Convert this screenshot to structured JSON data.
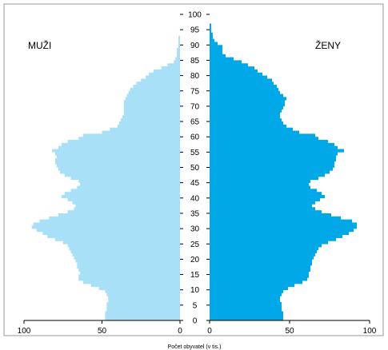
{
  "chart_data": {
    "type": "bar",
    "subtype": "population-pyramid",
    "orientation": "horizontal",
    "title": "",
    "xlabel": "Počet obyvatel (v tis.)",
    "ylabel": "",
    "left_label": "MUŽI",
    "right_label": "ŽENY",
    "xlim": [
      0,
      100
    ],
    "ylim": [
      0,
      100
    ],
    "x_ticks": [
      "100",
      "50",
      "0",
      "0",
      "50",
      "100"
    ],
    "y_ticks": [
      "0",
      "5",
      "10",
      "15",
      "20",
      "25",
      "30",
      "35",
      "40",
      "45",
      "50",
      "55",
      "60",
      "65",
      "70",
      "75",
      "80",
      "85",
      "90",
      "95",
      "100"
    ],
    "y_step": 1,
    "grid": false,
    "colors": {
      "male": "#a8e0f8",
      "female": "#00a8e8",
      "frame": "#999999"
    },
    "series": [
      {
        "name": "MUŽI",
        "values": [
          48,
          48,
          48,
          47,
          47,
          47,
          46,
          46,
          47,
          48,
          52,
          57,
          62,
          65,
          65,
          64,
          65,
          66,
          66,
          67,
          68,
          69,
          70,
          71,
          72,
          75,
          80,
          85,
          88,
          92,
          95,
          94,
          90,
          84,
          78,
          72,
          68,
          67,
          69,
          72,
          76,
          74,
          70,
          66,
          64,
          65,
          70,
          74,
          77,
          78,
          79,
          80,
          80,
          79,
          80,
          82,
          78,
          76,
          72,
          65,
          62,
          50,
          45,
          40,
          39,
          38,
          37,
          36,
          36,
          36,
          36,
          36,
          35,
          34,
          33,
          32,
          30,
          28,
          25,
          22,
          20,
          17,
          12,
          8,
          4,
          3,
          2,
          2,
          2,
          1,
          1,
          1,
          1,
          0,
          0,
          0,
          0,
          0,
          0,
          0,
          0
        ]
      },
      {
        "name": "ŽENY",
        "values": [
          46,
          46,
          46,
          45,
          45,
          45,
          44,
          44,
          45,
          46,
          49,
          53,
          58,
          61,
          62,
          62,
          63,
          63,
          64,
          64,
          65,
          66,
          67,
          68,
          70,
          74,
          79,
          83,
          87,
          90,
          92,
          92,
          89,
          82,
          76,
          70,
          66,
          64,
          66,
          69,
          72,
          70,
          67,
          63,
          62,
          63,
          68,
          72,
          75,
          77,
          78,
          78,
          79,
          79,
          80,
          84,
          80,
          78,
          74,
          68,
          66,
          56,
          52,
          48,
          46,
          45,
          44,
          44,
          45,
          46,
          47,
          47,
          48,
          46,
          44,
          43,
          42,
          40,
          39,
          36,
          33,
          30,
          28,
          24,
          20,
          15,
          10,
          8,
          8,
          8,
          5,
          3,
          2,
          2,
          1,
          1,
          1,
          0,
          0,
          0,
          0
        ]
      }
    ]
  }
}
